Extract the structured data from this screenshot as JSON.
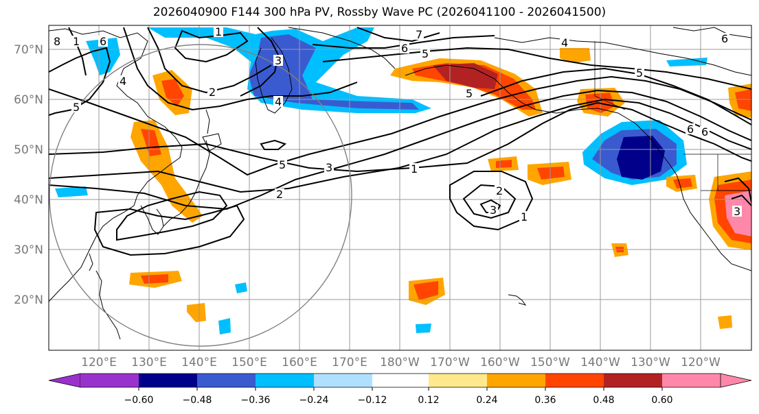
{
  "title": "2026040900 F144 300 hPa PV, Rossby Wave PC (2026041100 - 2026041500)",
  "lat_labels": [
    "70°N",
    "60°N",
    "50°N",
    "40°N",
    "30°N",
    "20°N"
  ],
  "lon_labels": [
    "120°E",
    "130°E",
    "140°E",
    "150°E",
    "160°E",
    "170°E",
    "180°W",
    "170°W",
    "160°W",
    "150°W",
    "140°W",
    "130°W",
    "120°W"
  ],
  "colorbar": {
    "colors": [
      "#9932cc",
      "#00008b",
      "#3a5bd0",
      "#00bfff",
      "#b0e0ff",
      "#ffffff",
      "#ffe98c",
      "#ffa500",
      "#ff4500",
      "#b22222",
      "#ff88aa"
    ],
    "labels": [
      "−0.60",
      "−0.48",
      "−0.36",
      "−0.24",
      "−0.12",
      "0.12",
      "0.24",
      "0.36",
      "0.48",
      "0.60"
    ]
  },
  "contour_labels": [
    "8",
    "1",
    "6",
    "4",
    "5",
    "2",
    "3",
    "4",
    "1",
    "7",
    "6",
    "5",
    "4",
    "5",
    "6",
    "6",
    "6",
    "5",
    "5",
    "3",
    "1",
    "2",
    "2",
    "3",
    "1",
    "3"
  ],
  "colors": {
    "coast": "#000000",
    "grid": "#999999",
    "circle": "#808080"
  }
}
